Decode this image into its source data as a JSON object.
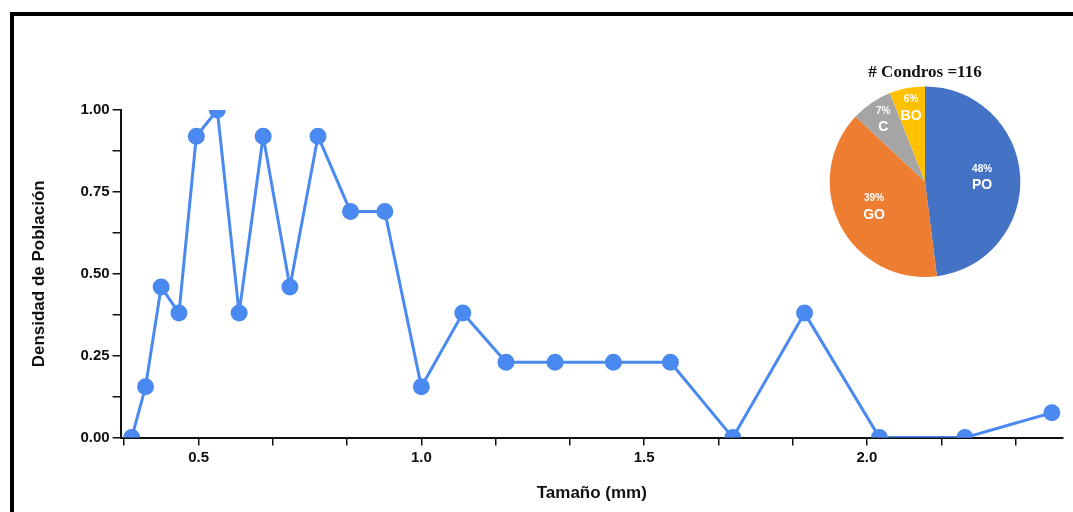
{
  "chart_data": [
    {
      "type": "line",
      "xlabel": "Tamaño (mm)",
      "ylabel": "Densidad de Población",
      "x": [
        0.35,
        0.381,
        0.416,
        0.456,
        0.495,
        0.542,
        0.591,
        0.645,
        0.705,
        0.768,
        0.841,
        0.918,
        1.0,
        1.093,
        1.19,
        1.3,
        1.431,
        1.559,
        1.699,
        1.86,
        2.028,
        2.22,
        2.415
      ],
      "series": [
        {
          "color": "#4a8af0",
          "values": [
            0,
            0.155,
            0.46,
            0.38,
            0.92,
            1.0,
            0.38,
            0.92,
            0.46,
            0.92,
            0.69,
            0.69,
            0.155,
            0.38,
            0.23,
            0.23,
            0.23,
            0.23,
            0,
            0.38,
            0,
            0,
            0.076
          ]
        }
      ],
      "xlim": [
        0.325,
        2.44
      ],
      "xticks": [
        {
          "value": 0.333,
          "label": null
        },
        0.5,
        {
          "value": 0.667,
          "label": null
        },
        {
          "value": 0.833,
          "label": null
        },
        {
          "value": 1.0,
          "label": "1.0"
        },
        {
          "value": 1.167,
          "label": null
        },
        {
          "value": 1.333,
          "label": null
        },
        1.5,
        {
          "value": 1.667,
          "label": null
        },
        {
          "value": 1.833,
          "label": null
        },
        {
          "value": 2.0,
          "label": "2.0"
        },
        {
          "value": 2.167,
          "label": null
        },
        {
          "value": 2.333,
          "label": null
        }
      ],
      "ylim": [
        0,
        1.0
      ],
      "yticks": [
        {
          "value": 0,
          "label": "0.00"
        },
        {
          "value": 0.125,
          "label": null
        },
        0.25,
        {
          "value": 0.375,
          "label": null
        },
        {
          "value": 0.5,
          "label": "0.50"
        },
        {
          "value": 0.625,
          "label": null
        },
        0.75,
        {
          "value": 0.875,
          "label": null
        },
        {
          "value": 1.0,
          "label": "1.00"
        }
      ],
      "grid": false,
      "legend": false,
      "marker": "circle",
      "line_style": "solid"
    },
    {
      "type": "pie",
      "title": "# Condros =116",
      "categories": [
        "PO",
        "GO",
        "C",
        "BO"
      ],
      "values": [
        48,
        39,
        7,
        6
      ],
      "colors": [
        "#4472c4",
        "#ed7d31",
        "#a5a5a5",
        "#ffc000"
      ],
      "value_labels": [
        "48%",
        "39%",
        "7%",
        "6%"
      ],
      "legend": false
    }
  ]
}
